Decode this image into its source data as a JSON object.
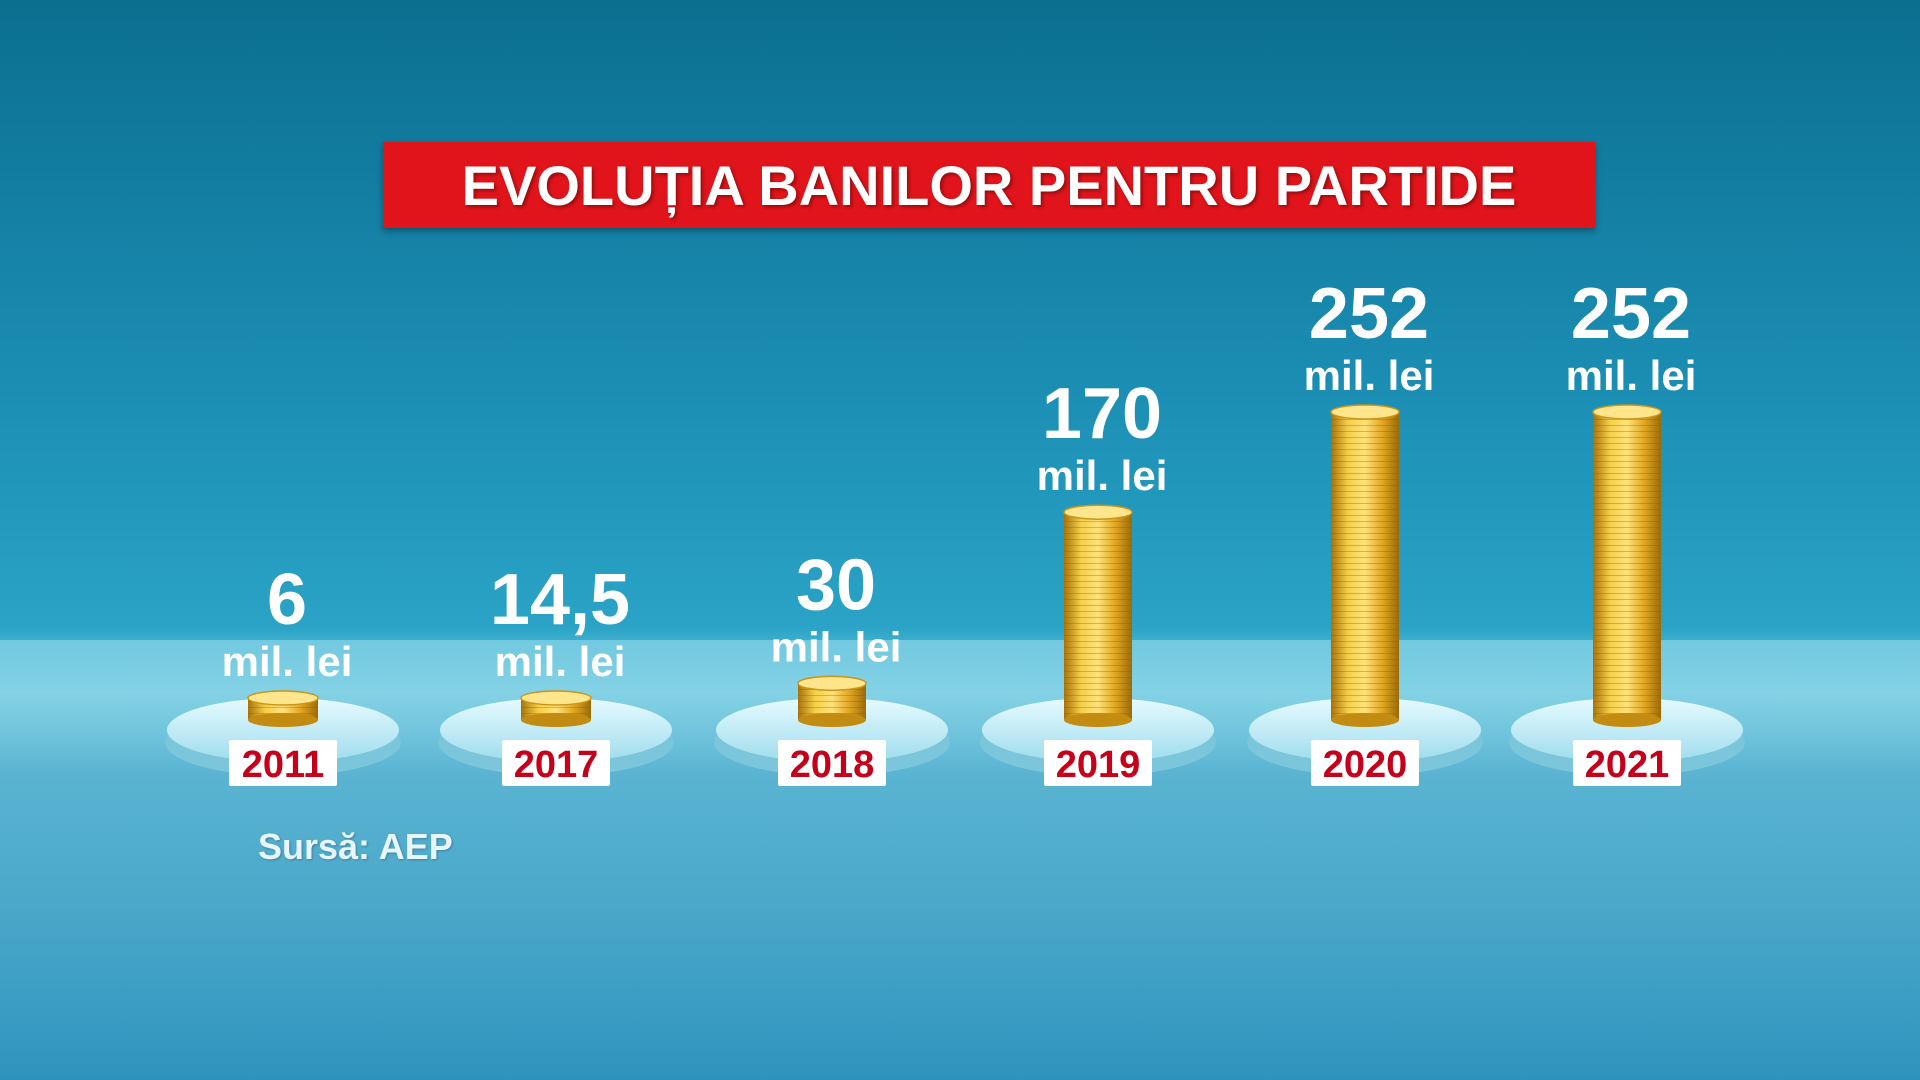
{
  "title": "EVOLUȚIA BANILOR PENTRU PARTIDE",
  "source": "Sursă: AEP",
  "chart_data": {
    "type": "bar",
    "title": "EVOLUȚIA BANILOR PENTRU PARTIDE",
    "categories": [
      "2011",
      "2017",
      "2018",
      "2019",
      "2020",
      "2021"
    ],
    "values": [
      6,
      14.5,
      30,
      170,
      252,
      252
    ],
    "value_labels": [
      "6",
      "14,5",
      "30",
      "170",
      "252",
      "252"
    ],
    "unit": "mil. lei",
    "xlabel": "",
    "ylabel": "",
    "grid": false,
    "legend": "none",
    "colors": {
      "coin": "#e6b422",
      "platform": "#bdeef7",
      "year_text": "#c4001a",
      "title_bg": "#e0141a"
    }
  }
}
